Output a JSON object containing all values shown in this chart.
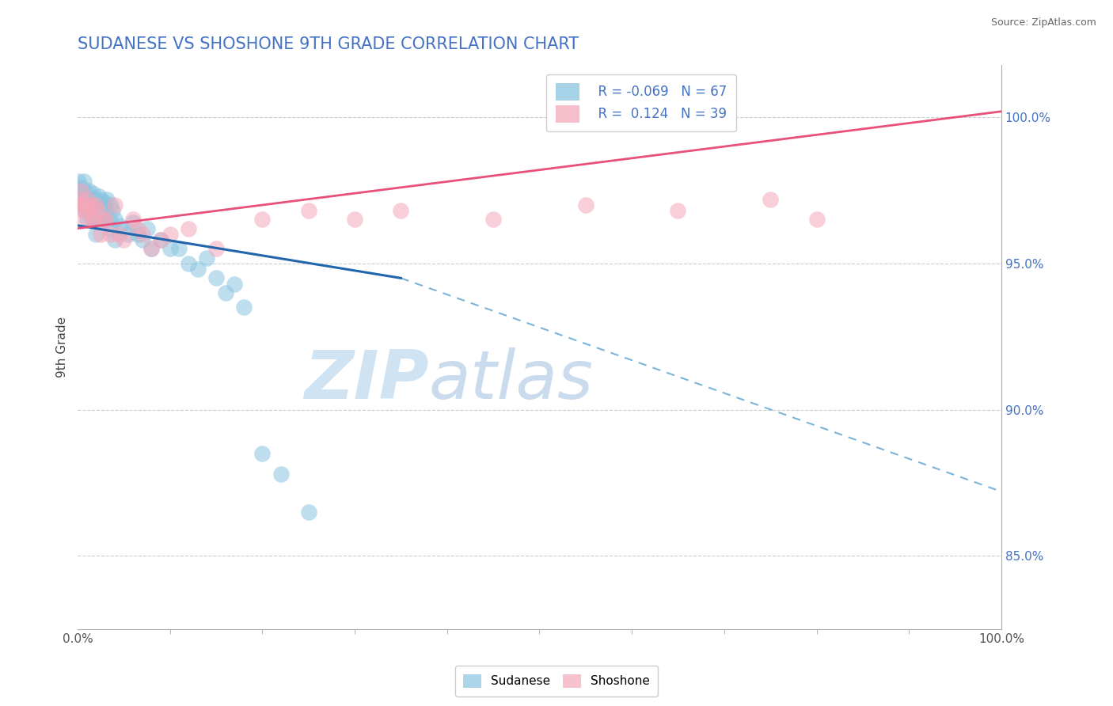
{
  "title": "SUDANESE VS SHOSHONE 9TH GRADE CORRELATION CHART",
  "source_text": "Source: ZipAtlas.com",
  "ylabel": "9th Grade",
  "xlim": [
    0.0,
    100.0
  ],
  "ylim": [
    82.5,
    101.8
  ],
  "yticks": [
    85.0,
    90.0,
    95.0,
    100.0
  ],
  "ytick_labels": [
    "85.0%",
    "90.0%",
    "95.0%",
    "100.0%"
  ],
  "xtick_labels": [
    "0.0%",
    "100.0%"
  ],
  "color_sudanese": "#89c4e1",
  "color_shoshone": "#f4a7b9",
  "color_trendline_blue": "#2166ac",
  "color_trendline_pink": "#e8507a",
  "color_dashed_blue": "#7ab4d8",
  "watermark_zip": "ZIP",
  "watermark_atlas": "atlas",
  "sud_x": [
    0.1,
    0.2,
    0.3,
    0.4,
    0.5,
    0.6,
    0.7,
    0.8,
    0.9,
    1.0,
    1.1,
    1.2,
    1.3,
    1.4,
    1.5,
    1.6,
    1.7,
    1.8,
    1.9,
    2.0,
    2.1,
    2.2,
    2.3,
    2.4,
    2.5,
    2.6,
    2.7,
    2.8,
    2.9,
    3.0,
    3.2,
    3.4,
    3.6,
    3.8,
    4.0,
    4.5,
    5.0,
    5.5,
    6.0,
    6.5,
    7.0,
    7.5,
    8.0,
    9.0,
    10.0,
    11.0,
    12.0,
    13.0,
    14.0,
    15.0,
    16.0,
    17.0,
    18.0,
    20.0,
    22.0,
    25.0,
    2.0,
    1.5,
    1.2,
    0.8,
    0.5,
    1.0,
    2.5,
    1.8,
    3.0,
    3.5,
    4.0
  ],
  "sud_y": [
    97.8,
    97.5,
    97.2,
    97.6,
    97.0,
    97.3,
    97.8,
    96.8,
    97.4,
    96.5,
    97.1,
    97.5,
    97.2,
    97.0,
    96.8,
    97.4,
    96.6,
    97.2,
    97.0,
    96.5,
    97.0,
    96.8,
    97.3,
    96.5,
    97.2,
    96.8,
    97.0,
    96.5,
    97.1,
    96.8,
    97.2,
    96.5,
    97.0,
    96.8,
    96.5,
    96.3,
    96.2,
    96.0,
    96.4,
    96.0,
    95.8,
    96.2,
    95.5,
    95.8,
    95.5,
    95.5,
    95.0,
    94.8,
    95.2,
    94.5,
    94.0,
    94.3,
    93.5,
    88.5,
    87.8,
    86.5,
    96.0,
    96.5,
    96.8,
    97.0,
    97.3,
    97.0,
    96.5,
    96.8,
    96.5,
    96.2,
    95.8
  ],
  "sho_x": [
    0.3,
    0.5,
    0.8,
    1.0,
    1.2,
    1.5,
    1.8,
    2.0,
    2.5,
    3.0,
    3.5,
    4.0,
    5.0,
    6.0,
    7.0,
    8.0,
    10.0,
    12.0,
    15.0,
    20.0,
    25.0,
    30.0,
    35.0,
    45.0,
    55.0,
    65.0,
    75.0,
    80.0,
    0.4,
    0.6,
    1.1,
    1.6,
    2.2,
    2.8,
    4.5,
    6.5,
    9.0,
    0.2,
    0.7
  ],
  "sho_y": [
    97.5,
    97.0,
    96.5,
    97.2,
    96.8,
    97.0,
    96.5,
    97.0,
    96.0,
    96.5,
    96.0,
    97.0,
    95.8,
    96.5,
    96.0,
    95.5,
    96.0,
    96.2,
    95.5,
    96.5,
    96.8,
    96.5,
    96.8,
    96.5,
    97.0,
    96.8,
    97.2,
    96.5,
    97.0,
    96.8,
    97.0,
    96.5,
    96.8,
    96.5,
    96.0,
    96.2,
    95.8,
    97.2,
    97.0
  ],
  "blue_line_x0": 0.0,
  "blue_line_y0": 96.3,
  "blue_line_x1": 35.0,
  "blue_line_y1": 94.5,
  "dashed_line_x0": 35.0,
  "dashed_line_y0": 94.5,
  "dashed_line_x1": 100.0,
  "dashed_line_y1": 87.2,
  "pink_line_x0": 0.0,
  "pink_line_y0": 96.2,
  "pink_line_x1": 100.0,
  "pink_line_y1": 100.2
}
